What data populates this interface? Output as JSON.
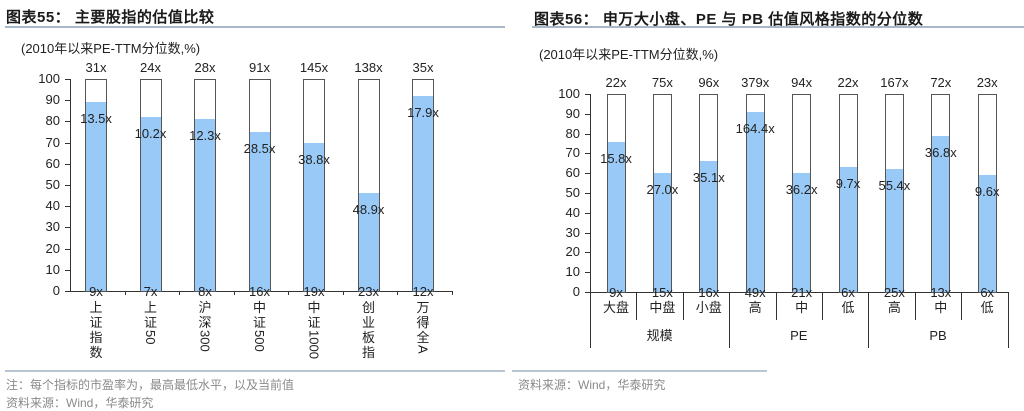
{
  "left": {
    "title": "图表55： 主要股指的估值比较",
    "subtitle": "(2010年以来PE-TTM分位数,%)",
    "note": "注：每个指标的市盈率为，最高最低水平，以及当前值",
    "source": "资料来源：Wind，华泰研究"
  },
  "right": {
    "title": "图表56： 申万大小盘、PE 与 PB 估值风格指数的分位数",
    "subtitle": "(2010年以来PE-TTM分位数,%)",
    "source": "资料来源：Wind，华泰研究",
    "groups": [
      "规模",
      "PE",
      "PB"
    ]
  },
  "colors": {
    "bar_fill": "#99caf7",
    "bar_border": "#555555",
    "rule": "#a9b8c6"
  },
  "chart_data": [
    {
      "type": "bar",
      "title": "图表55：主要股指的估值比较",
      "ylabel": "2010年以来PE-TTM分位数,%",
      "ylim": [
        0,
        100
      ],
      "yticks": [
        0,
        10,
        20,
        30,
        40,
        50,
        60,
        70,
        80,
        90,
        100
      ],
      "grid": false,
      "categories": [
        "上证指数",
        "上证50",
        "沪深300",
        "中证500",
        "中证1000",
        "创业板指",
        "万得全A"
      ],
      "values": [
        89,
        82,
        81,
        75,
        70,
        46,
        92
      ],
      "annotations": {
        "max_pe": [
          "31x",
          "24x",
          "28x",
          "91x",
          "145x",
          "138x",
          "35x"
        ],
        "current_pe": [
          "13.5x",
          "10.2x",
          "12.3x",
          "28.5x",
          "38.8x",
          "48.9x",
          "17.9x"
        ],
        "min_pe": [
          "9x",
          "7x",
          "8x",
          "16x",
          "19x",
          "23x",
          "12x"
        ]
      }
    },
    {
      "type": "bar",
      "title": "图表56：申万大小盘、PE 与 PB 估值风格指数的分位数",
      "ylabel": "2010年以来PE-TTM分位数,%",
      "ylim": [
        0,
        100
      ],
      "yticks": [
        0,
        10,
        20,
        30,
        40,
        50,
        60,
        70,
        80,
        90,
        100
      ],
      "grid": false,
      "categories": [
        "大盘",
        "中盘",
        "小盘",
        "高",
        "中",
        "低",
        "高",
        "中",
        "低"
      ],
      "category_groups": [
        {
          "name": "规模",
          "members": [
            "大盘",
            "中盘",
            "小盘"
          ]
        },
        {
          "name": "PE",
          "members": [
            "高",
            "中",
            "低"
          ]
        },
        {
          "name": "PB",
          "members": [
            "高",
            "中",
            "低"
          ]
        }
      ],
      "values": [
        76,
        60,
        66,
        91,
        60,
        63,
        62,
        79,
        59
      ],
      "annotations": {
        "max_pe": [
          "22x",
          "75x",
          "96x",
          "379x",
          "94x",
          "22x",
          "167x",
          "72x",
          "23x"
        ],
        "current_pe": [
          "15.8x",
          "27.0x",
          "35.1x",
          "164.4x",
          "36.2x",
          "9.7x",
          "55.4x",
          "36.8x",
          "9.6x"
        ],
        "min_pe": [
          "9x",
          "15x",
          "16x",
          "49x",
          "21x",
          "6x",
          "25x",
          "13x",
          "6x"
        ]
      }
    }
  ]
}
